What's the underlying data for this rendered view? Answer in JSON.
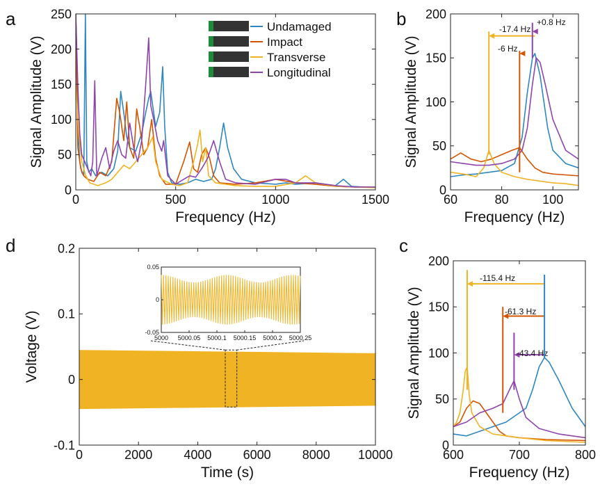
{
  "chart_data": [
    {
      "panel_letter": "a",
      "type": "line",
      "xlabel": "Frequency (Hz)",
      "ylabel": "Signal Amplitude (V)",
      "xlim": [
        0,
        1500
      ],
      "ylim": [
        0,
        250
      ],
      "xticks": [
        "0",
        "500",
        "1000",
        "1500"
      ],
      "yticks": [
        "0",
        "50",
        "100",
        "150",
        "200",
        "250"
      ],
      "legend": "top-right",
      "series": [
        {
          "name": "Undamaged",
          "color": "#2E86C1",
          "x": [
            0,
            10,
            20,
            30,
            40,
            48,
            55,
            65,
            80,
            100,
            130,
            160,
            190,
            210,
            225,
            240,
            255,
            270,
            300,
            330,
            350,
            365,
            375,
            385,
            400,
            420,
            435,
            445,
            460,
            480,
            520,
            560,
            600,
            640,
            680,
            700,
            720,
            740,
            760,
            790,
            830,
            900,
            1000,
            1050,
            1100,
            1200,
            1300,
            1340,
            1380,
            1450,
            1500
          ],
          "y": [
            250,
            90,
            40,
            25,
            20,
            250,
            40,
            25,
            30,
            20,
            25,
            20,
            30,
            55,
            140,
            110,
            75,
            60,
            55,
            80,
            110,
            130,
            140,
            120,
            90,
            110,
            175,
            90,
            25,
            10,
            8,
            10,
            15,
            12,
            15,
            30,
            60,
            95,
            60,
            30,
            15,
            10,
            8,
            10,
            8,
            10,
            6,
            15,
            5,
            4,
            4
          ]
        },
        {
          "name": "Impact",
          "color": "#D35400",
          "x": [
            0,
            10,
            25,
            40,
            60,
            90,
            120,
            150,
            180,
            205,
            220,
            240,
            255,
            270,
            290,
            305,
            320,
            340,
            360,
            380,
            400,
            420,
            450,
            500,
            540,
            570,
            590,
            610,
            630,
            650,
            670,
            690,
            720,
            800,
            900,
            1000,
            1100,
            1200,
            1300,
            1400,
            1500
          ],
          "y": [
            250,
            60,
            30,
            20,
            15,
            12,
            25,
            20,
            40,
            130,
            110,
            70,
            125,
            60,
            45,
            115,
            90,
            50,
            60,
            100,
            45,
            20,
            8,
            8,
            40,
            68,
            30,
            25,
            50,
            60,
            45,
            20,
            10,
            8,
            10,
            15,
            10,
            8,
            5,
            4,
            4
          ]
        },
        {
          "name": "Transverse",
          "color": "#F0B323",
          "x": [
            0,
            15,
            30,
            50,
            70,
            90,
            110,
            130,
            150,
            180,
            210,
            240,
            270,
            300,
            330,
            360,
            385,
            400,
            430,
            480,
            520,
            560,
            590,
            610,
            622,
            635,
            650,
            665,
            700,
            750,
            800,
            900,
            1000,
            1100,
            1150,
            1200,
            1300,
            1400,
            1500
          ],
          "y": [
            150,
            80,
            40,
            20,
            10,
            8,
            6,
            8,
            10,
            15,
            25,
            35,
            30,
            40,
            50,
            60,
            75,
            40,
            15,
            8,
            6,
            10,
            40,
            65,
            85,
            40,
            60,
            20,
            10,
            8,
            6,
            5,
            5,
            10,
            20,
            10,
            5,
            4,
            3
          ]
        },
        {
          "name": "Longitudinal",
          "color": "#8E44AD",
          "x": [
            0,
            10,
            20,
            30,
            45,
            60,
            75,
            85,
            95,
            105,
            130,
            150,
            170,
            190,
            210,
            230,
            250,
            270,
            290,
            310,
            330,
            350,
            365,
            375,
            390,
            410,
            430,
            440,
            460,
            500,
            540,
            570,
            600,
            630,
            660,
            690,
            720,
            750,
            800,
            900,
            1000,
            1050,
            1100,
            1200,
            1300,
            1400,
            1500
          ],
          "y": [
            250,
            150,
            80,
            50,
            40,
            30,
            20,
            40,
            155,
            20,
            45,
            60,
            30,
            55,
            70,
            50,
            45,
            95,
            60,
            40,
            70,
            150,
            216,
            120,
            100,
            70,
            55,
            70,
            20,
            8,
            15,
            20,
            18,
            30,
            45,
            70,
            40,
            15,
            10,
            8,
            15,
            15,
            10,
            10,
            6,
            4,
            4
          ]
        }
      ]
    },
    {
      "panel_letter": "b",
      "type": "line",
      "xlabel": "Frequency (Hz)",
      "ylabel": "Signal Amplitude (V)",
      "xlim": [
        60,
        110
      ],
      "ylim": [
        0,
        200
      ],
      "xticks": [
        "60",
        "80",
        "100"
      ],
      "yticks": [
        "0",
        "50",
        "100",
        "150",
        "200"
      ],
      "annotations": [
        "-17.4 Hz",
        "-6 Hz",
        "+0.8 Hz"
      ],
      "series": [
        {
          "color": "#2E86C1",
          "x": [
            60,
            65,
            70,
            75,
            80,
            85,
            88,
            90,
            92,
            93,
            95,
            98,
            100,
            105,
            110
          ],
          "y": [
            15,
            17,
            18,
            20,
            22,
            30,
            60,
            110,
            150,
            155,
            130,
            70,
            45,
            30,
            25
          ]
        },
        {
          "color": "#D35400",
          "x": [
            60,
            64,
            68,
            72,
            76,
            80,
            84,
            87,
            90,
            93,
            96,
            100,
            105,
            110
          ],
          "y": [
            35,
            42,
            35,
            32,
            35,
            40,
            45,
            48,
            35,
            25,
            20,
            18,
            17,
            16
          ]
        },
        {
          "color": "#F0B323",
          "x": [
            60,
            65,
            70,
            73,
            75,
            77,
            80,
            85,
            90,
            95,
            100,
            105,
            110
          ],
          "y": [
            20,
            18,
            15,
            25,
            45,
            30,
            20,
            15,
            12,
            10,
            8,
            7,
            5
          ]
        },
        {
          "color": "#8E44AD",
          "x": [
            60,
            65,
            70,
            75,
            80,
            85,
            88,
            90,
            92,
            93.5,
            95,
            97,
            100,
            105,
            110
          ],
          "y": [
            32,
            30,
            28,
            28,
            30,
            35,
            45,
            70,
            120,
            150,
            145,
            120,
            80,
            45,
            35
          ]
        }
      ]
    },
    {
      "panel_letter": "c",
      "type": "line",
      "xlabel": "Frequency (Hz)",
      "ylabel": "Signal Amplitude (V)",
      "xlim": [
        600,
        800
      ],
      "ylim": [
        0,
        200
      ],
      "xticks": [
        "600",
        "700",
        "800"
      ],
      "yticks": [
        "0",
        "50",
        "100",
        "150",
        "200"
      ],
      "annotations": [
        "-115.4 Hz",
        "-61.3 Hz",
        "-43.4 Hz"
      ],
      "series": [
        {
          "color": "#2E86C1",
          "x": [
            600,
            620,
            640,
            660,
            680,
            700,
            710,
            720,
            730,
            738,
            745,
            760,
            780,
            800
          ],
          "y": [
            12,
            10,
            15,
            20,
            25,
            35,
            40,
            60,
            85,
            95,
            90,
            70,
            40,
            20
          ]
        },
        {
          "color": "#D35400",
          "x": [
            600,
            610,
            620,
            630,
            640,
            650,
            660,
            670,
            680,
            700,
            740,
            800
          ],
          "y": [
            20,
            25,
            40,
            48,
            45,
            35,
            25,
            15,
            10,
            8,
            6,
            5
          ]
        },
        {
          "color": "#F0B323",
          "x": [
            600,
            605,
            610,
            615,
            618,
            621,
            624,
            628,
            640,
            660,
            700,
            740,
            800
          ],
          "y": [
            20,
            25,
            35,
            60,
            80,
            85,
            55,
            35,
            20,
            12,
            8,
            5,
            3
          ]
        },
        {
          "color": "#8E44AD",
          "x": [
            600,
            620,
            640,
            660,
            675,
            685,
            692,
            700,
            710,
            730,
            760,
            800
          ],
          "y": [
            20,
            25,
            35,
            40,
            45,
            60,
            70,
            50,
            30,
            18,
            12,
            8
          ]
        }
      ]
    },
    {
      "panel_letter": "d",
      "type": "line",
      "xlabel": "Time (s)",
      "ylabel": "Voltage (V)",
      "xlim": [
        0,
        10000
      ],
      "ylim": [
        -0.1,
        0.2
      ],
      "xticks": [
        "0",
        "2000",
        "4000",
        "6000",
        "8000",
        "10000"
      ],
      "yticks": [
        "-0.1",
        "0",
        "0.1",
        "0.2"
      ],
      "series": [
        {
          "color": "#F0B323",
          "x": [
            0,
            10000
          ],
          "y_upper": [
            0.045,
            0.04
          ],
          "y_lower": [
            -0.045,
            -0.04
          ]
        }
      ],
      "inset": {
        "xlim": [
          5000,
          5000.25
        ],
        "ylim": [
          -0.05,
          0.05
        ],
        "xticks": [
          "5000",
          "5000.05",
          "5000.1",
          "5000.15",
          "5000.2",
          "5000.25"
        ],
        "yticks": [
          "-0.05",
          "0",
          "0.05"
        ],
        "amplitude": 0.038
      }
    }
  ]
}
